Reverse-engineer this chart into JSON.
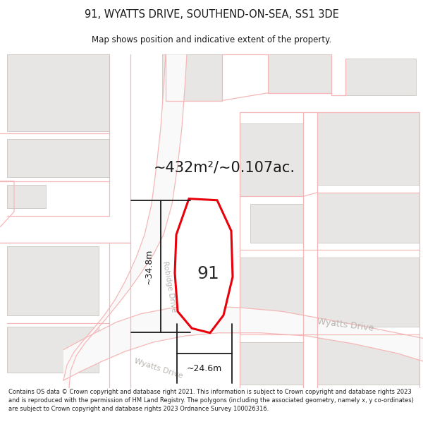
{
  "title": "91, WYATTS DRIVE, SOUTHEND-ON-SEA, SS1 3DE",
  "subtitle": "Map shows position and indicative extent of the property.",
  "area_label": "~432m²/~0.107ac.",
  "property_number": "91",
  "dim_width": "~24.6m",
  "dim_height": "~34.8m",
  "road_label_robidge": "Robidge Drive",
  "road_label_wyatts1": "Wyatts Drive",
  "road_label_wyatts2": "Wyatts Drive",
  "footer": "Contains OS data © Crown copyright and database right 2021. This information is subject to Crown copyright and database rights 2023 and is reproduced with the permission of HM Land Registry. The polygons (including the associated geometry, namely x, y co-ordinates) are subject to Crown copyright and database rights 2023 Ordnance Survey 100026316.",
  "bg_color": "#ffffff",
  "map_bg": "#ffffff",
  "building_fill": "#e8e6e4",
  "building_edge": "#d0cdc9",
  "road_line_color": "#f5b8b8",
  "property_fill": "#ffffff",
  "property_outline": "#e8000a",
  "dim_line_color": "#1a1a1a",
  "text_color": "#1a1a1a",
  "road_text_color": "#b8b4b0",
  "area_text_color": "#1a1a1a"
}
